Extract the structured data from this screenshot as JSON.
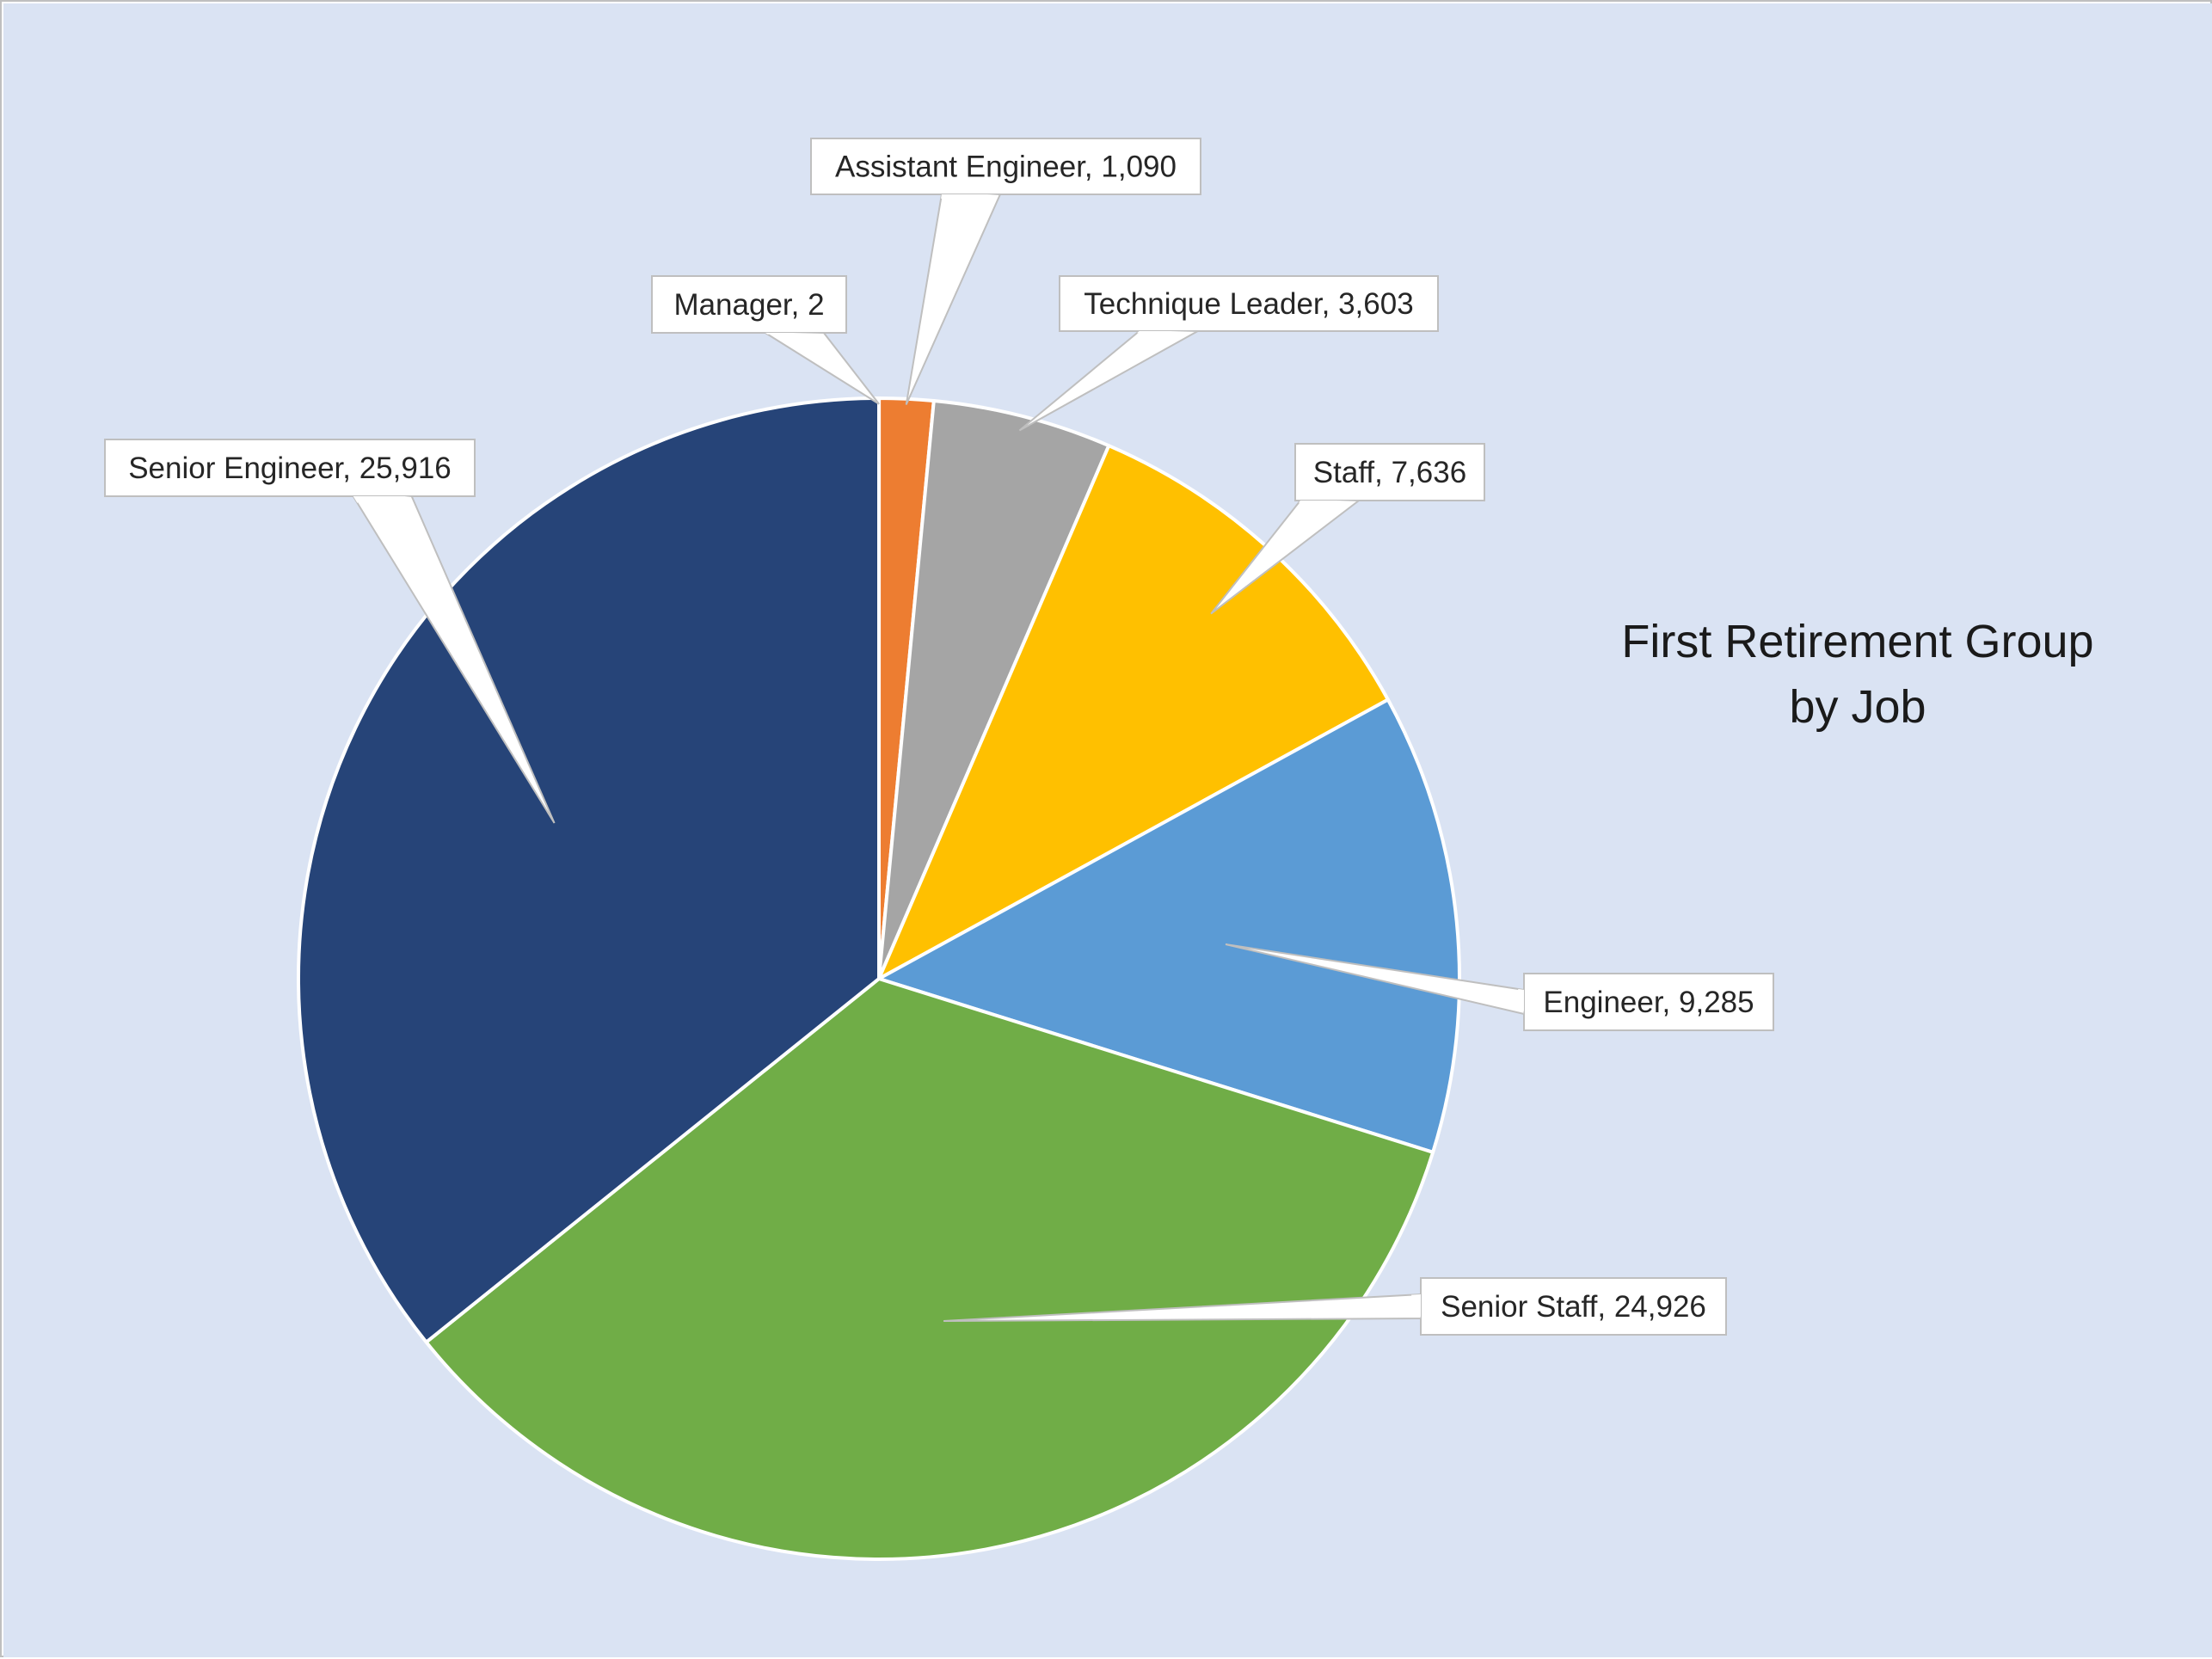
{
  "chart_data": {
    "type": "pie",
    "title": "First Retirement Group",
    "subtitle": "by Job",
    "background_color": "#dae3f3",
    "start_angle_deg": 0,
    "direction": "clockwise",
    "slices": [
      {
        "label": "Manager",
        "value": 2,
        "color": "#ed7d31",
        "data_label": "Manager, 2"
      },
      {
        "label": "Assistant Engineer",
        "value": 1090,
        "color": "#ed7d31",
        "data_label": "Assistant Engineer, 1,090"
      },
      {
        "label": "Technique Leader",
        "value": 3603,
        "color": "#a5a5a5",
        "data_label": "Technique Leader, 3,603"
      },
      {
        "label": "Staff",
        "value": 7636,
        "color": "#ffc000",
        "data_label": "Staff, 7,636"
      },
      {
        "label": "Engineer",
        "value": 9285,
        "color": "#5b9bd5",
        "data_label": "Engineer, 9,285"
      },
      {
        "label": "Senior Staff",
        "value": 24926,
        "color": "#70ad47",
        "data_label": "Senior Staff, 24,926"
      },
      {
        "label": "Senior Engineer",
        "value": 25916,
        "color": "#264478",
        "data_label": "Senior Engineer, 25,916"
      }
    ]
  }
}
